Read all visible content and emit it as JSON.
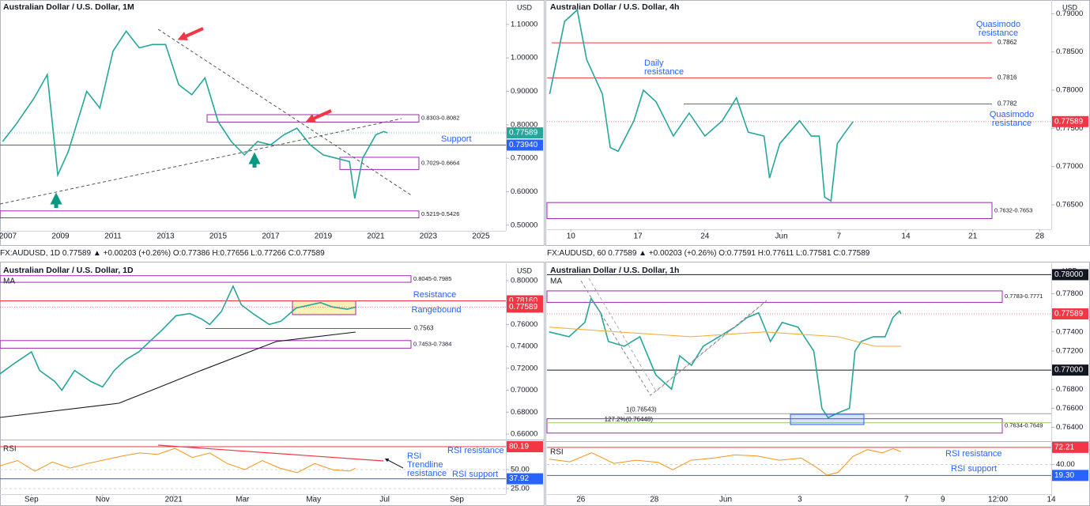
{
  "chart_data": [
    {
      "type": "line",
      "title": "Australian Dollar / U.S. Dollar, 1M",
      "currency": "USD",
      "xlim": [
        2006.7,
        2025.95
      ],
      "xticks": [
        2007,
        2009,
        2011,
        2013,
        2015,
        2017,
        2019,
        2021,
        2023,
        2025
      ],
      "ylim": [
        0.483,
        1.173
      ],
      "yticks": [
        {
          "value": 0.5,
          "label": "0.50000"
        },
        {
          "value": 0.6,
          "label": "0.60000"
        },
        {
          "value": 0.7,
          "label": "0.70000"
        },
        {
          "value": 0.8,
          "label": "0.80000"
        },
        {
          "value": 0.9,
          "label": "0.90000"
        },
        {
          "value": 1.0,
          "label": "1.00000"
        },
        {
          "value": 1.1,
          "label": "1.10000"
        }
      ],
      "series": [
        {
          "color": "#26a69a",
          "x": [
            2006.8,
            2007.3,
            2008,
            2008.5,
            2008.9,
            2009.3,
            2010,
            2010.5,
            2011,
            2011.5,
            2012,
            2012.5,
            2013,
            2013.5,
            2014,
            2014.5,
            2015,
            2015.5,
            2016,
            2016.5,
            2017,
            2017.5,
            2018,
            2018.5,
            2019,
            2019.5,
            2020,
            2020.2,
            2020.5,
            2021,
            2021.3,
            2021.45
          ],
          "values": [
            0.75,
            0.8,
            0.88,
            0.95,
            0.65,
            0.72,
            0.9,
            0.85,
            1.02,
            1.08,
            1.03,
            1.04,
            1.04,
            0.92,
            0.89,
            0.94,
            0.81,
            0.75,
            0.71,
            0.75,
            0.74,
            0.77,
            0.79,
            0.74,
            0.71,
            0.7,
            0.69,
            0.58,
            0.7,
            0.77,
            0.78,
            0.77589
          ]
        }
      ],
      "last": 0.77589,
      "last_color": "#26a69a",
      "levels": [
        {
          "value": 0.7394,
          "label": "0.73940",
          "color": "#2962ff",
          "style": "tag"
        }
      ],
      "zones": [
        {
          "low": 0.8082,
          "high": 0.8303,
          "label": "0.8303-0.8082",
          "color": "#9c27b0"
        },
        {
          "low": 0.6664,
          "high": 0.7029,
          "label": "0.7029-0.6664",
          "color": "#9c27b0"
        },
        {
          "low": 0.5219,
          "high": 0.5426,
          "label": "0.5219-0.5426",
          "color": "#9c27b0"
        }
      ],
      "annotations": [
        {
          "text": "Support"
        }
      ]
    },
    {
      "type": "line",
      "title": "Australian Dollar / U.S. Dollar, 4h",
      "currency": "USD",
      "xlim": [
        7.5,
        60.2
      ],
      "xticks": [
        10,
        17,
        24,
        {
          "value": 32,
          "label": "Jun"
        },
        {
          "value": 38,
          "label": "7"
        },
        {
          "value": 45,
          "label": "14"
        },
        {
          "value": 52,
          "label": "21"
        },
        {
          "value": 59,
          "label": "28"
        }
      ],
      "ylim": [
        0.7618,
        0.7918
      ],
      "yticks": [
        {
          "value": 0.765,
          "label": "0.76500"
        },
        {
          "value": 0.77,
          "label": "0.77000"
        },
        {
          "value": 0.775,
          "label": "0.77500"
        },
        {
          "value": 0.78,
          "label": "0.78000"
        },
        {
          "value": 0.785,
          "label": "0.78500"
        },
        {
          "value": 0.79,
          "label": "0.79000"
        }
      ],
      "series": [
        {
          "color": "#26a69a",
          "x": [
            7.78,
            9.34,
            10.66,
            11.65,
            13.29,
            14.12,
            14.94,
            16.59,
            17.58,
            18.9,
            20.71,
            22.36,
            24,
            25.82,
            27.3,
            28.53,
            30.18,
            30.76,
            31.83,
            33.89,
            35.12,
            35.95,
            36.52,
            37.18,
            37.84,
            38.67,
            39.49
          ],
          "values": [
            0.7795,
            0.789,
            0.7905,
            0.784,
            0.7795,
            0.7725,
            0.772,
            0.776,
            0.78,
            0.7785,
            0.774,
            0.777,
            0.774,
            0.776,
            0.779,
            0.7745,
            0.774,
            0.7685,
            0.773,
            0.776,
            0.774,
            0.774,
            0.766,
            0.7655,
            0.773,
            0.7745,
            0.77589
          ]
        }
      ],
      "last": 0.77589,
      "last_color": "#f23645",
      "levels": [
        {
          "value": 0.7862,
          "color": "#f23645",
          "style": "text"
        },
        {
          "value": 0.7816,
          "color": "#f23645",
          "style": "text"
        },
        {
          "value": 0.7782,
          "color": "#f23645",
          "style": "text"
        }
      ],
      "zones": [
        {
          "low": 0.7632,
          "high": 0.7653,
          "label": "0.7632-0.7653",
          "color": "#9c27b0"
        }
      ],
      "annotations": [
        {
          "text": "Quasimodo resistance"
        },
        {
          "text": "Daily resistance"
        },
        {
          "text": "Quasimodo resistance"
        }
      ]
    },
    {
      "type": "line",
      "title": "Australian Dollar / U.S. Dollar, 1D",
      "currency": "USD",
      "legend_line": "FX:AUDUSD, 1D 0.77589 ▲ +0.00203 (+0.26%) O:0.77386 H:0.77656 L:0.77266 C:0.77589",
      "xlim": [
        -27,
        407
      ],
      "xticks": [
        {
          "value": 0,
          "label": "Sep"
        },
        {
          "value": 61,
          "label": "Nov"
        },
        {
          "value": 122,
          "label": "2021"
        },
        {
          "value": 181,
          "label": "Mar"
        },
        {
          "value": 242,
          "label": "May"
        },
        {
          "value": 303,
          "label": "Jul"
        },
        {
          "value": 365,
          "label": "Sep"
        }
      ],
      "ylim": [
        0.6557,
        0.8072
      ],
      "yticks": [
        {
          "value": 0.66,
          "label": "0.66000"
        },
        {
          "value": 0.68,
          "label": "0.68000"
        },
        {
          "value": 0.7,
          "label": "0.70000"
        },
        {
          "value": 0.72,
          "label": "0.72000"
        },
        {
          "value": 0.74,
          "label": "0.74000"
        },
        {
          "value": 0.76,
          "label": "0.76000"
        },
        {
          "value": 0.78,
          "label": "0.78000"
        },
        {
          "value": 0.8,
          "label": "0.80000"
        }
      ],
      "series": [
        {
          "color": "#26a69a",
          "x": [
            -27,
            -14,
            0,
            7,
            20,
            26,
            37,
            51,
            61,
            71,
            81,
            92,
            102,
            112,
            124,
            136,
            146,
            153,
            163,
            173,
            180,
            190,
            204,
            214,
            227,
            248,
            258,
            271,
            278
          ],
          "values": [
            0.715,
            0.725,
            0.735,
            0.718,
            0.708,
            0.7,
            0.718,
            0.708,
            0.703,
            0.718,
            0.728,
            0.735,
            0.745,
            0.755,
            0.768,
            0.77,
            0.765,
            0.76,
            0.772,
            0.795,
            0.778,
            0.77,
            0.76,
            0.763,
            0.775,
            0.78,
            0.776,
            0.774,
            0.77589
          ]
        },
        {
          "name": "MA",
          "color": "#131722",
          "x": [
            -27,
            75,
            109,
            143,
            210,
            278
          ],
          "values": [
            0.6752,
            0.6882,
            0.7025,
            0.717,
            0.7444,
            0.7531
          ]
        }
      ],
      "last": 0.77589,
      "last_color": "#f23645",
      "levels": [
        {
          "value": 0.7816,
          "label": "0.78160",
          "color": "#f23645",
          "style": "tag"
        },
        {
          "value": 0.7563,
          "color": "#2962ff",
          "style": "text"
        }
      ],
      "zones": [
        {
          "low": 0.7985,
          "high": 0.8045,
          "label": "0.8045-0.7985",
          "color": "#9c27b0"
        },
        {
          "low": 0.7384,
          "high": 0.7453,
          "label": "0.7453-0.7384",
          "color": "#9c27b0"
        },
        {
          "low": 0.769,
          "high": 0.7815,
          "color": "#f3e48a"
        }
      ],
      "annotations": [
        {
          "text": "Resistance"
        },
        {
          "text": "Rangebound"
        }
      ],
      "rsi": {
        "label": "RSI",
        "color": "#f7931a",
        "x": [
          -27,
          -12,
          3,
          18,
          33,
          48,
          63,
          78,
          93,
          108,
          123,
          138,
          153,
          168,
          183,
          198,
          213,
          228,
          243,
          258,
          273,
          278
        ],
        "values": [
          55,
          62,
          48,
          60,
          52,
          58,
          63,
          68,
          72,
          70,
          78,
          66,
          72,
          58,
          50,
          62,
          52,
          46,
          58,
          50,
          48,
          52
        ],
        "ylim": [
          17.7,
          87.5
        ],
        "yticks": [
          {
            "value": 50,
            "label": "50.00"
          },
          {
            "value": 25,
            "label": "25.00"
          }
        ],
        "levels": [
          {
            "value": 80.19,
            "color": "#f23645",
            "style": "tag"
          },
          {
            "value": 37.92,
            "color": "#2962ff",
            "style": "tag"
          }
        ],
        "annotations": [
          {
            "text": "RSI resistance"
          },
          {
            "text": "RSI support"
          },
          {
            "text": "RSI Trendline resistance"
          }
        ]
      }
    },
    {
      "type": "line",
      "title": "Australian Dollar / U.S. Dollar, 1h",
      "currency": "USD",
      "legend_line": "FX:AUDUSD, 60 0.77589 ▲ +0.00203 (+0.26%) O:0.77591 H:0.77611 L:0.77581 C:0.77589",
      "xlim": [
        -0.92,
        12.8
      ],
      "xticks": [
        {
          "value": 0,
          "label": "26"
        },
        {
          "value": 2,
          "label": "28"
        },
        {
          "value": 3.94,
          "label": "Jun"
        },
        {
          "value": 5.96,
          "label": "3"
        },
        {
          "value": 8.86,
          "label": "7"
        },
        {
          "value": 9.85,
          "label": "9"
        },
        {
          "value": 11.35,
          "label": "12:00"
        },
        {
          "value": 12.8,
          "label": "14"
        }
      ],
      "ylim": [
        0.7628,
        0.7802
      ],
      "yticks": [
        {
          "value": 0.764,
          "label": "0.76400"
        },
        {
          "value": 0.766,
          "label": "0.76600"
        },
        {
          "value": 0.768,
          "label": "0.76800"
        },
        {
          "value": 0.772,
          "label": "0.77200"
        },
        {
          "value": 0.774,
          "label": "0.77400"
        },
        {
          "value": 0.778,
          "label": "0.77800"
        }
      ],
      "series": [
        {
          "color": "#26a69a",
          "x": [
            -0.86,
            -0.32,
            0.11,
            0.28,
            0.54,
            0.75,
            1.18,
            1.61,
            2.04,
            2.47,
            2.69,
            3.01,
            3.33,
            3.76,
            4.19,
            4.52,
            4.84,
            5.16,
            5.48,
            5.91,
            6.34,
            6.56,
            6.73,
            6.99,
            7.31,
            7.46,
            7.63,
            7.96,
            8.28,
            8.49,
            8.67,
            8.71
          ],
          "values": [
            0.774,
            0.7735,
            0.775,
            0.7775,
            0.776,
            0.773,
            0.7725,
            0.7735,
            0.7695,
            0.768,
            0.7715,
            0.7705,
            0.7725,
            0.7735,
            0.7745,
            0.7755,
            0.776,
            0.773,
            0.775,
            0.7745,
            0.772,
            0.766,
            0.765,
            0.7655,
            0.766,
            0.772,
            0.773,
            0.7735,
            0.7735,
            0.7755,
            0.7762,
            0.77589
          ]
        },
        {
          "name": "MA",
          "color": "#f5b041",
          "x": [
            -0.86,
            1,
            3,
            5,
            7,
            8,
            8.71
          ],
          "values": [
            0.7745,
            0.774,
            0.7735,
            0.774,
            0.7735,
            0.7725,
            0.7725
          ]
        }
      ],
      "last": 0.77589,
      "last_color": "#f23645",
      "levels": [
        {
          "value": 0.78,
          "label": "0.78000",
          "color": "#131722",
          "style": "tag"
        },
        {
          "value": 0.77,
          "label": "0.77000",
          "color": "#131722",
          "style": "tag"
        },
        {
          "value": 0.76543,
          "label": "1(0.76543)",
          "color": "#9e9e9e",
          "style": "text"
        },
        {
          "value": 0.76448,
          "label": "127.2%(0.76448)",
          "color": "#9ccc65",
          "style": "text"
        }
      ],
      "zones": [
        {
          "low": 0.7771,
          "high": 0.7783,
          "label": "0.7783-0.7771",
          "color": "#9c27b0"
        },
        {
          "low": 0.7634,
          "high": 0.7649,
          "label": "0.7634-0.7649",
          "color": "#9c27b0"
        }
      ],
      "annotations": [],
      "rsi": {
        "label": "RSI",
        "color": "#f7931a",
        "x": [
          -0.86,
          -0.3,
          0.3,
          0.9,
          1.5,
          2.1,
          2.5,
          3.0,
          3.6,
          4.2,
          4.8,
          5.4,
          6.0,
          6.4,
          6.7,
          7.0,
          7.4,
          7.8,
          8.2,
          8.5,
          8.71
        ],
        "values": [
          50,
          45,
          62,
          42,
          48,
          44,
          30,
          48,
          52,
          58,
          56,
          48,
          52,
          35,
          20,
          25,
          55,
          68,
          62,
          70,
          64
        ],
        "ylim": [
          -16,
          78
        ],
        "yticks": [
          {
            "value": 40,
            "label": "40.00"
          }
        ],
        "levels": [
          {
            "value": 72.21,
            "color": "#f23645",
            "style": "tag"
          },
          {
            "value": 19.3,
            "label": "19.30",
            "color": "#2962ff",
            "style": "tag"
          }
        ],
        "annotations": [
          {
            "text": "RSI resistance"
          },
          {
            "text": "RSI support"
          }
        ]
      }
    }
  ]
}
